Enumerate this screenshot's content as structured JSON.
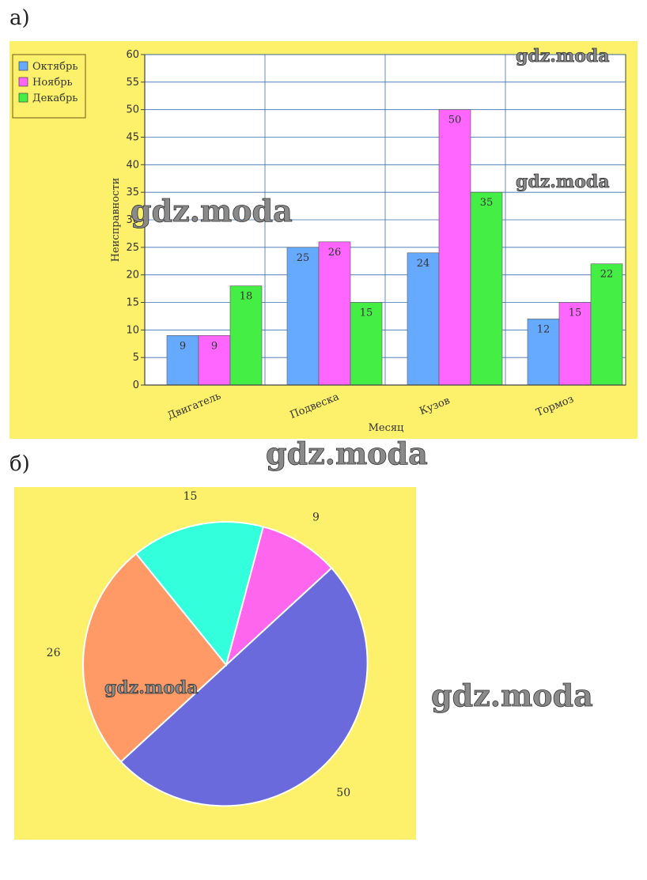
{
  "labels": {
    "part_a": "а)",
    "part_b": "б)"
  },
  "watermark": "gdz.moda",
  "chart_data": [
    {
      "type": "bar",
      "title": "",
      "xlabel": "Месяц",
      "ylabel": "Неисправности",
      "ylim": [
        0,
        60
      ],
      "yticks": [
        0,
        5,
        10,
        15,
        20,
        25,
        30,
        35,
        40,
        45,
        50,
        55,
        60
      ],
      "grid": true,
      "legend_position": "top-left",
      "categories": [
        "Двигатель",
        "Подвеска",
        "Кузов",
        "Тормоз"
      ],
      "series": [
        {
          "name": "Октябрь",
          "color": "#66aaff",
          "values": [
            9,
            25,
            24,
            12
          ]
        },
        {
          "name": "Ноябрь",
          "color": "#ff66ff",
          "values": [
            9,
            26,
            50,
            15
          ]
        },
        {
          "name": "Декабрь",
          "color": "#44ee44",
          "values": [
            18,
            15,
            35,
            22
          ]
        }
      ]
    },
    {
      "type": "pie",
      "values": [
        9,
        50,
        26,
        15
      ],
      "labels": [
        "9",
        "50",
        "26",
        "15"
      ],
      "colors": [
        "#ff66ee",
        "#6a6add",
        "#ff9966",
        "#33ffdd"
      ]
    }
  ]
}
